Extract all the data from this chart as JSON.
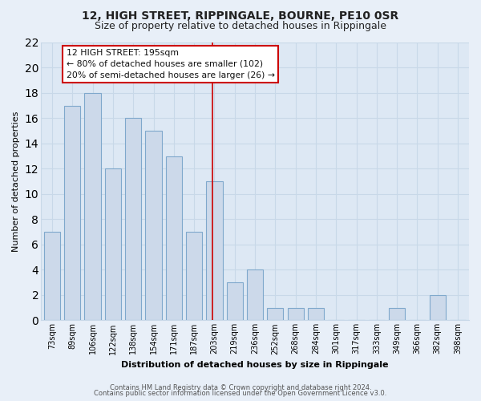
{
  "title": "12, HIGH STREET, RIPPINGALE, BOURNE, PE10 0SR",
  "subtitle": "Size of property relative to detached houses in Rippingale",
  "xlabel": "Distribution of detached houses by size in Rippingale",
  "ylabel": "Number of detached properties",
  "bar_labels": [
    "73sqm",
    "89sqm",
    "106sqm",
    "122sqm",
    "138sqm",
    "154sqm",
    "171sqm",
    "187sqm",
    "203sqm",
    "219sqm",
    "236sqm",
    "252sqm",
    "268sqm",
    "284sqm",
    "301sqm",
    "317sqm",
    "333sqm",
    "349sqm",
    "366sqm",
    "382sqm",
    "398sqm"
  ],
  "bar_values": [
    7,
    17,
    18,
    12,
    16,
    15,
    13,
    7,
    11,
    3,
    4,
    1,
    1,
    1,
    0,
    0,
    0,
    1,
    0,
    2,
    0
  ],
  "bar_color": "#ccd9ea",
  "bar_edge_color": "#7fa8cc",
  "grid_color": "#c8d8e8",
  "background_color": "#e8eff8",
  "plot_bg_color": "#dde8f4",
  "vline_color": "#cc0000",
  "annotation_title": "12 HIGH STREET: 195sqm",
  "annotation_line1": "← 80% of detached houses are smaller (102)",
  "annotation_line2": "20% of semi-detached houses are larger (26) →",
  "annotation_box_color": "#ffffff",
  "annotation_box_edge": "#cc0000",
  "ylim": [
    0,
    22
  ],
  "yticks": [
    0,
    2,
    4,
    6,
    8,
    10,
    12,
    14,
    16,
    18,
    20,
    22
  ],
  "footer_line1": "Contains HM Land Registry data © Crown copyright and database right 2024.",
  "footer_line2": "Contains public sector information licensed under the Open Government Licence v3.0.",
  "title_fontsize": 10,
  "subtitle_fontsize": 9,
  "axis_label_fontsize": 8,
  "tick_fontsize": 7,
  "footer_fontsize": 6
}
